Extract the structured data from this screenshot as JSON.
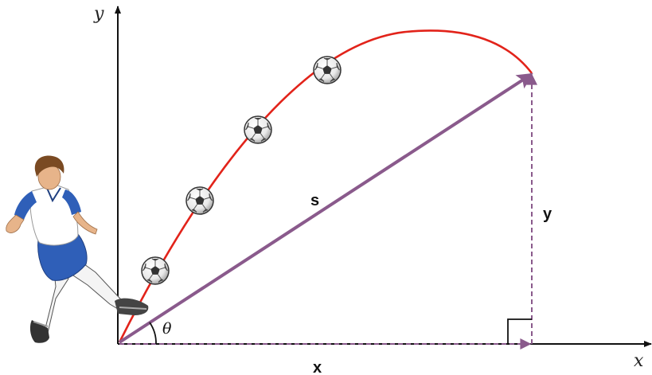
{
  "labels": {
    "y_axis": "y",
    "x_axis": "x",
    "displacement": "s",
    "x_component": "x",
    "y_component": "y",
    "angle": "θ"
  },
  "colors": {
    "trajectory": "#e2231a",
    "vector": "#8a5a8c",
    "axis": "#111111"
  },
  "icons": {
    "player": "soccer-player-kicking-icon",
    "ball": "soccer-ball-icon"
  }
}
